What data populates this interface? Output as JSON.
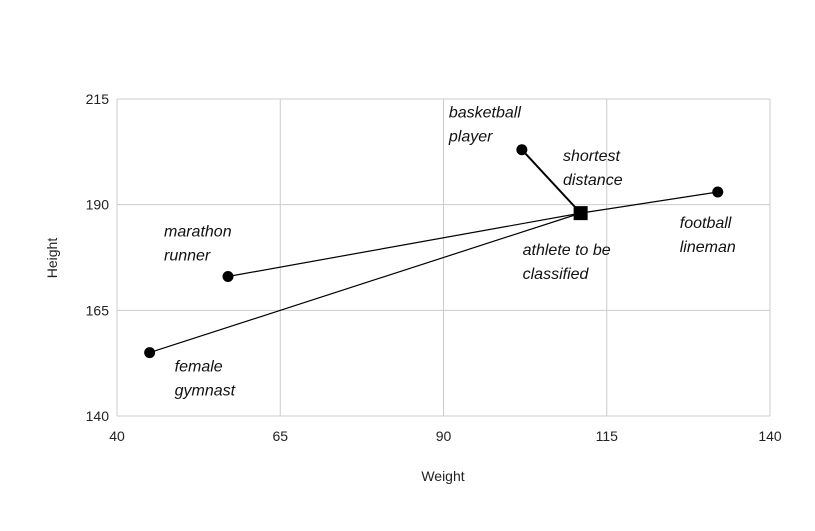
{
  "chart_data": {
    "type": "scatter",
    "xlabel": "Weight",
    "ylabel": "Height",
    "xlim": [
      40,
      140
    ],
    "ylim": [
      140,
      215
    ],
    "xticks": [
      40,
      65,
      90,
      115,
      140
    ],
    "yticks": [
      140,
      165,
      190,
      215
    ],
    "grid": true,
    "points": [
      {
        "label": [
          "basketball",
          "player"
        ],
        "x": 102,
        "y": 203,
        "marker": "circle"
      },
      {
        "label": [
          "football",
          "lineman"
        ],
        "x": 132,
        "y": 193,
        "marker": "circle"
      },
      {
        "label": [
          "marathon",
          "runner"
        ],
        "x": 57,
        "y": 173,
        "marker": "circle"
      },
      {
        "label": [
          "female",
          "gymnast"
        ],
        "x": 45,
        "y": 155,
        "marker": "circle"
      }
    ],
    "target": {
      "label": [
        "athlete to be",
        "classified"
      ],
      "x": 111,
      "y": 188,
      "marker": "square"
    },
    "annotation": [
      "shortest",
      "distance"
    ],
    "shortest_to": "basketball player",
    "colors": {
      "marks": "#000000",
      "grid": "#cccccc"
    }
  }
}
